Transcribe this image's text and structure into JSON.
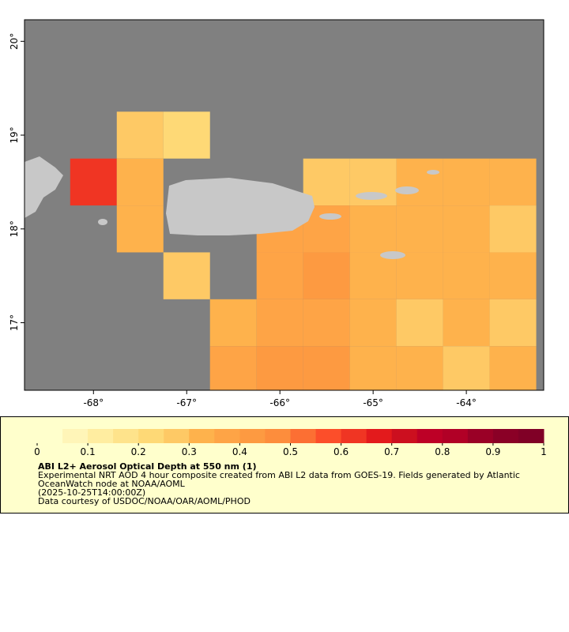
{
  "chart_data": {
    "type": "map",
    "xlim": [
      -68.74,
      -63.17
    ],
    "ylim": [
      16.28,
      20.23
    ],
    "xticks": [
      {
        "value": -68,
        "label": "-68°"
      },
      {
        "value": -67,
        "label": "-67°"
      },
      {
        "value": -66,
        "label": "-66°"
      },
      {
        "value": -65,
        "label": "-65°"
      },
      {
        "value": -64,
        "label": "-64°"
      }
    ],
    "yticks": [
      {
        "value": 17,
        "label": "17°"
      },
      {
        "value": 18,
        "label": "18°"
      },
      {
        "value": 19,
        "label": "19°"
      },
      {
        "value": 20,
        "label": "20°"
      }
    ],
    "ocean_color": "#808080",
    "land_color": "#c8c8c8",
    "grid": {
      "lon_edges": [
        -68.75,
        -68.25,
        -67.75,
        -67.25,
        -66.75,
        -66.25,
        -65.75,
        -65.25,
        -64.75,
        -64.25,
        -63.75,
        -63.25
      ],
      "lat_edges": [
        20.25,
        19.75,
        19.25,
        18.75,
        18.25,
        17.75,
        17.25,
        16.75,
        16.25
      ],
      "values": [
        [
          null,
          null,
          null,
          null,
          null,
          null,
          null,
          null,
          null,
          null,
          null
        ],
        [
          null,
          null,
          null,
          null,
          null,
          null,
          null,
          null,
          null,
          null,
          null
        ],
        [
          null,
          null,
          0.25,
          0.2,
          null,
          null,
          null,
          null,
          null,
          null,
          null
        ],
        [
          null,
          0.6,
          0.3,
          null,
          null,
          null,
          0.25,
          0.25,
          0.3,
          0.3,
          0.3
        ],
        [
          null,
          null,
          0.3,
          null,
          null,
          0.35,
          0.35,
          0.3,
          0.3,
          0.3,
          0.25
        ],
        [
          null,
          null,
          null,
          0.25,
          null,
          0.35,
          0.4,
          0.3,
          0.3,
          0.3,
          0.3
        ],
        [
          null,
          null,
          null,
          null,
          0.3,
          0.35,
          0.35,
          0.3,
          0.25,
          0.3,
          0.25
        ],
        [
          null,
          null,
          null,
          null,
          0.35,
          0.4,
          0.4,
          0.3,
          0.3,
          0.25,
          0.3
        ]
      ]
    },
    "colorbar": {
      "lim": [
        0,
        1
      ],
      "ticks": [
        0,
        0.1,
        0.2,
        0.3,
        0.4,
        0.5,
        0.6,
        0.7,
        0.8,
        0.9,
        1
      ],
      "colors": [
        "#ffffcc",
        "#fff5b8",
        "#ffeda0",
        "#fee38b",
        "#fed976",
        "#fec965",
        "#feb24c",
        "#fea446",
        "#fd9a41",
        "#fd8d3c",
        "#fc6f33",
        "#fc4e2a",
        "#f03523",
        "#e31a1c",
        "#cc0f1f",
        "#bd0026",
        "#b10026",
        "#9a0026",
        "#8a0026",
        "#800026"
      ]
    },
    "title": "ABI L2+ Aerosol Optical Depth at 550 nm (1)",
    "description": [
      "Experimental NRT AOD 4 hour composite created from ABI L2 data from GOES-19. Fields generated by Atlantic",
      "OceanWatch node at NOAA/AOML",
      "(2025-10-25T14:00:00Z)",
      "Data courtesy of USDOC/NOAA/OAR/AOML/PHOD"
    ]
  }
}
